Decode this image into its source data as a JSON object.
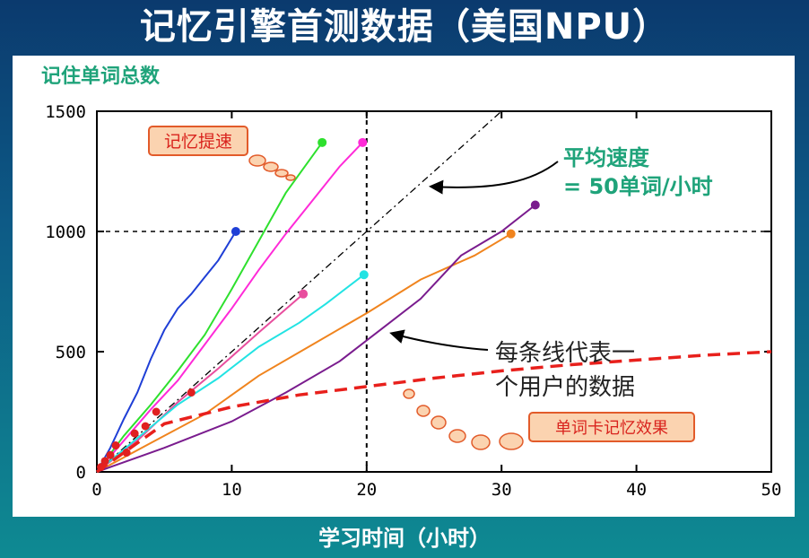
{
  "slide": {
    "title": "记忆引擎首测数据（美国NPU）",
    "x_caption": "学习时间（小时）"
  },
  "annotations": {
    "speedup": "记忆提速",
    "avg_speed_line1": "平均速度",
    "avg_speed_line2": "= 50单词/小时",
    "per_user_line1": "每条线代表一",
    "per_user_line2": "个用户的数据",
    "flashcard": "单词卡记忆效果"
  },
  "colors": {
    "annotation_green": "#1fa37a",
    "label_box_fill": "#fbd3b0",
    "label_box_stroke": "#e25b2a",
    "label_text": "#d9231d"
  },
  "chart_data": {
    "type": "line",
    "title": "",
    "ylabel": "记住单词总数",
    "xlabel": "学习时间（小时）",
    "xlim": [
      0,
      50
    ],
    "ylim": [
      0,
      1500
    ],
    "xticks": [
      0,
      10,
      20,
      30,
      40,
      50
    ],
    "yticks": [
      0,
      500,
      1000,
      1500
    ],
    "reference_lines": {
      "x": 20,
      "y": 1000
    },
    "series": [
      {
        "color": "#1f3fd6",
        "x": [
          0,
          1,
          2,
          3,
          4,
          5,
          6,
          7,
          8,
          9,
          10.3
        ],
        "y": [
          0,
          100,
          220,
          330,
          470,
          590,
          680,
          740,
          810,
          880,
          1000
        ]
      },
      {
        "color": "#2ee02e",
        "x": [
          0,
          2,
          4,
          6,
          8,
          10,
          12,
          14,
          16.7
        ],
        "y": [
          0,
          150,
          280,
          420,
          570,
          760,
          960,
          1160,
          1370
        ]
      },
      {
        "color": "#ff2ad8",
        "x": [
          0,
          2,
          4,
          6,
          8,
          10,
          12,
          14,
          16,
          18,
          19.7
        ],
        "y": [
          0,
          130,
          260,
          380,
          530,
          680,
          840,
          990,
          1130,
          1270,
          1370
        ]
      },
      {
        "color": "#e84e9e",
        "x": [
          0,
          3,
          6,
          9,
          12,
          15.3
        ],
        "y": [
          0,
          130,
          290,
          430,
          580,
          740
        ]
      },
      {
        "color": "#22e3e3",
        "x": [
          0,
          3,
          6,
          9,
          12,
          15,
          17,
          19.8
        ],
        "y": [
          0,
          140,
          280,
          390,
          520,
          620,
          700,
          820
        ]
      },
      {
        "color": "#f0841e",
        "x": [
          0,
          4,
          8,
          12,
          16,
          20,
          24,
          28,
          30.7
        ],
        "y": [
          0,
          120,
          240,
          400,
          530,
          660,
          800,
          900,
          990
        ]
      },
      {
        "color": "#7a1c8e",
        "x": [
          0,
          5,
          10,
          14,
          18,
          21,
          24,
          27,
          30,
          32.5
        ],
        "y": [
          0,
          100,
          210,
          330,
          460,
          590,
          720,
          900,
          1000,
          1110
        ]
      }
    ],
    "average_speed_line": {
      "x": [
        0,
        30
      ],
      "y": [
        0,
        1500
      ]
    },
    "flashcard_curve": {
      "x": [
        0,
        5,
        10,
        15,
        20,
        25,
        30,
        35,
        40,
        45,
        50
      ],
      "y": [
        0,
        200,
        270,
        320,
        355,
        390,
        420,
        445,
        465,
        485,
        500
      ]
    }
  }
}
